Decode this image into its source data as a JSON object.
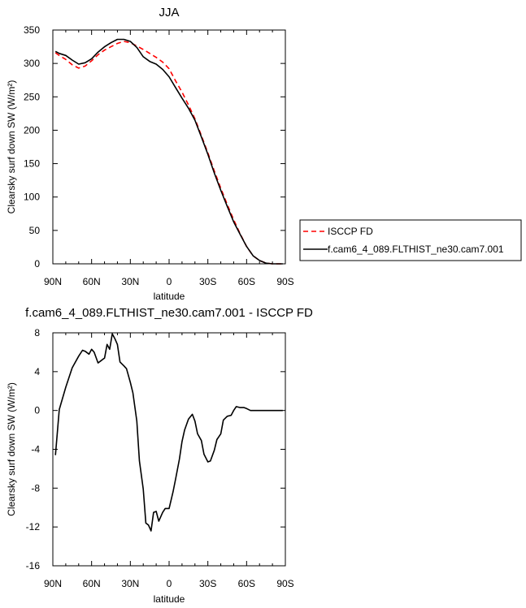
{
  "chart_data": [
    {
      "type": "line",
      "title": "JJA",
      "xlabel": "latitude",
      "ylabel": "Clearsky surf down SW (W/m²)",
      "xlim": [
        90,
        -90
      ],
      "ylim": [
        0,
        350
      ],
      "x_ticks": [
        90,
        60,
        30,
        0,
        -30,
        -60,
        -90
      ],
      "x_tick_labels": [
        "90N",
        "60N",
        "30N",
        "0",
        "30S",
        "60S",
        "90S"
      ],
      "y_ticks": [
        0,
        50,
        100,
        150,
        200,
        250,
        300,
        350
      ],
      "y_tick_labels": [
        "0",
        "50",
        "100",
        "150",
        "200",
        "250",
        "300",
        "350"
      ],
      "grid": false,
      "legend_position": "right",
      "series": [
        {
          "name": "ISCCP FD",
          "color": "#ff0000",
          "style": "dashed",
          "x": [
            88,
            85,
            80,
            75,
            70,
            65,
            60,
            55,
            50,
            45,
            40,
            35,
            30,
            25,
            20,
            15,
            10,
            5,
            0,
            -5,
            -10,
            -15,
            -20,
            -25,
            -30,
            -35,
            -40,
            -45,
            -50,
            -55,
            -60,
            -65,
            -70,
            -75,
            -80,
            -85,
            -88
          ],
          "y": [
            316,
            312,
            306,
            298,
            293,
            296,
            304,
            313,
            320,
            325,
            330,
            333,
            331,
            326,
            321,
            315,
            309,
            302,
            292,
            274,
            257,
            238,
            217,
            192,
            166,
            139,
            113,
            89,
            66,
            45,
            26,
            12,
            5,
            1,
            0,
            0,
            0
          ]
        },
        {
          "name": "f.cam6_4_089.FLTHIST_ne30.cam7.001",
          "color": "#000000",
          "style": "solid",
          "x": [
            88,
            85,
            80,
            75,
            70,
            65,
            60,
            55,
            50,
            45,
            40,
            35,
            30,
            25,
            20,
            15,
            10,
            5,
            0,
            -5,
            -10,
            -15,
            -20,
            -25,
            -30,
            -35,
            -40,
            -45,
            -50,
            -55,
            -60,
            -65,
            -70,
            -75,
            -80,
            -85,
            -88
          ],
          "y": [
            318,
            315,
            312,
            305,
            299,
            301,
            307,
            317,
            325,
            331,
            336,
            336,
            333,
            324,
            310,
            303,
            299,
            291,
            280,
            264,
            248,
            233,
            215,
            190,
            164,
            136,
            110,
            86,
            63,
            44,
            26,
            12,
            5,
            1,
            0,
            0,
            0
          ]
        }
      ]
    },
    {
      "type": "line",
      "title": "f.cam6_4_089.FLTHIST_ne30.cam7.001 - ISCCP FD",
      "xlabel": "latitude",
      "ylabel": "Clearsky surf down SW (W/m²)",
      "xlim": [
        90,
        -90
      ],
      "ylim": [
        -16,
        8
      ],
      "x_ticks": [
        90,
        60,
        30,
        0,
        -30,
        -60,
        -90
      ],
      "x_tick_labels": [
        "90N",
        "60N",
        "30N",
        "0",
        "30S",
        "60S",
        "90S"
      ],
      "y_ticks": [
        -16,
        -12,
        -8,
        -4,
        0,
        4,
        8
      ],
      "y_tick_labels": [
        "-16",
        "-12",
        "-8",
        "-4",
        "0",
        "4",
        "8"
      ],
      "grid": false,
      "series": [
        {
          "color": "#000000",
          "style": "solid",
          "x": [
            88,
            85,
            80,
            75,
            70,
            67,
            65,
            62,
            60,
            58,
            55,
            53,
            50,
            48,
            46,
            44,
            42,
            40,
            38,
            35,
            33,
            30,
            28,
            25,
            23,
            20,
            18,
            16,
            14,
            12,
            10,
            8,
            5,
            3,
            0,
            -3,
            -5,
            -8,
            -10,
            -12,
            -15,
            -18,
            -20,
            -22,
            -25,
            -27,
            -30,
            -32,
            -35,
            -37,
            -40,
            -42,
            -45,
            -48,
            -50,
            -52,
            -55,
            -58,
            -60,
            -63,
            -65,
            -70,
            -75,
            -80,
            -85,
            -88
          ],
          "y": [
            -4.6,
            0.1,
            2.4,
            4.4,
            5.6,
            6.2,
            6.1,
            5.8,
            6.3,
            6.0,
            4.9,
            5.1,
            5.4,
            6.8,
            6.3,
            7.9,
            7.4,
            6.8,
            5.0,
            4.6,
            4.3,
            2.9,
            1.8,
            -1.1,
            -5.2,
            -8.1,
            -11.6,
            -11.8,
            -12.4,
            -10.5,
            -10.4,
            -11.4,
            -10.5,
            -10.1,
            -10.1,
            -8.4,
            -7.1,
            -5.0,
            -3.2,
            -2.0,
            -0.9,
            -0.4,
            -1.1,
            -2.4,
            -3.1,
            -4.5,
            -5.3,
            -5.2,
            -4.1,
            -3.0,
            -2.4,
            -1.0,
            -0.6,
            -0.5,
            0.0,
            0.4,
            0.3,
            0.3,
            0.2,
            0.0,
            0.0,
            0.0,
            0.0,
            0.0,
            0.0,
            0.0
          ]
        }
      ]
    }
  ]
}
